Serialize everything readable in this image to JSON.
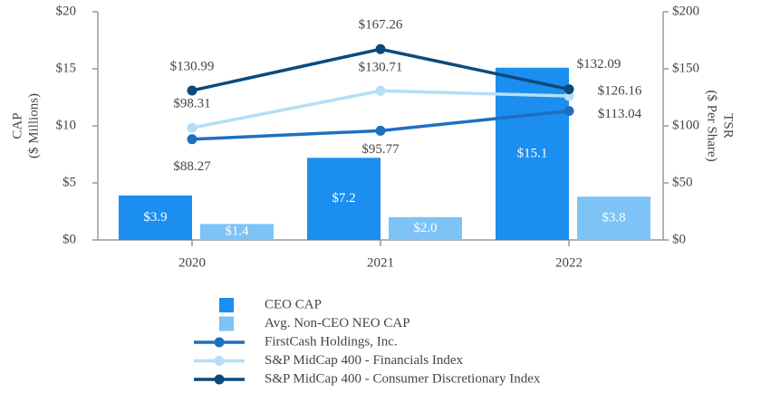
{
  "chart_data": {
    "type": "bar",
    "categories": [
      "2020",
      "2021",
      "2022"
    ],
    "ylabel": [
      "CAP",
      "($ Millions)"
    ],
    "y2label": [
      "TSR",
      "($ Per Share)"
    ],
    "ylim": [
      0,
      20
    ],
    "yticks": [
      {
        "value": 0,
        "label": "$0"
      },
      {
        "value": 5,
        "label": "$5"
      },
      {
        "value": 10,
        "label": "$10"
      },
      {
        "value": 15,
        "label": "$15"
      },
      {
        "value": 20,
        "label": "$20"
      }
    ],
    "y2lim": [
      0,
      200
    ],
    "y2ticks": [
      {
        "value": 0,
        "label": "$0"
      },
      {
        "value": 50,
        "label": "$50"
      },
      {
        "value": 100,
        "label": "$100"
      },
      {
        "value": 150,
        "label": "$150"
      },
      {
        "value": 200,
        "label": "$200"
      }
    ],
    "grid": false,
    "legend": "bottom",
    "series": [
      {
        "name": "CEO CAP",
        "type": "bar",
        "color": "#1b8ef0",
        "values": [
          3.9,
          7.2,
          15.1
        ],
        "value_labels": [
          "$3.9",
          "$7.2",
          "$15.1"
        ]
      },
      {
        "name": "Avg. Non-CEO NEO CAP",
        "type": "bar",
        "color": "#7dc3f6",
        "values": [
          1.4,
          2.0,
          3.8
        ],
        "value_labels": [
          "$1.4",
          "$2.0",
          "$3.8"
        ]
      },
      {
        "name": "FirstCash Holdings, Inc.",
        "type": "line",
        "axis": "y2",
        "color": "#1f6fc0",
        "values": [
          88.27,
          95.77,
          113.04
        ],
        "value_labels": [
          "$88.27",
          "$95.77",
          "$113.04"
        ]
      },
      {
        "name": "S&P MidCap 400 - Financials Index",
        "type": "line",
        "axis": "y2",
        "color": "#b5def7",
        "values": [
          98.31,
          130.71,
          126.16
        ],
        "value_labels": [
          "$98.31",
          "$130.71",
          "$126.16"
        ]
      },
      {
        "name": "S&P MidCap 400 - Consumer Discretionary Index",
        "type": "line",
        "axis": "y2",
        "color": "#0c4a7c",
        "values": [
          130.99,
          167.26,
          132.09
        ],
        "value_labels": [
          "$130.99",
          "$167.26",
          "$132.09"
        ]
      }
    ]
  }
}
